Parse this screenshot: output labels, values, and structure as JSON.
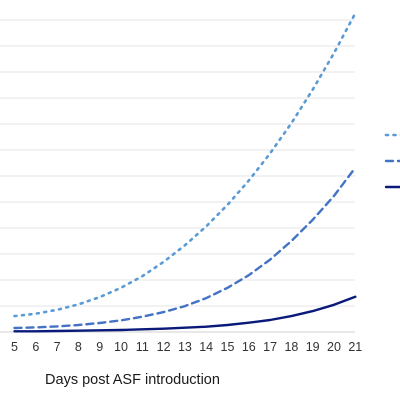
{
  "chart_data": {
    "type": "line",
    "xlabel": "Days post ASF introduction",
    "x": [
      5,
      6,
      7,
      8,
      9,
      10,
      11,
      12,
      13,
      14,
      15,
      16,
      17,
      18,
      19,
      20,
      21
    ],
    "x_tick_labels": [
      "5",
      "6",
      "7",
      "8",
      "9",
      "10",
      "11",
      "12",
      "13",
      "14",
      "15",
      "16",
      "17",
      "18",
      "19",
      "20",
      "21"
    ],
    "ylim": [
      0,
      100
    ],
    "grid": true,
    "series": [
      {
        "style": "dotted",
        "color": "#5b9bd5",
        "values": [
          4.8,
          5.5,
          6.7,
          8.3,
          10.5,
          13.3,
          16.8,
          21.1,
          26.1,
          31.8,
          38.3,
          45.6,
          53.8,
          62.9,
          73.0,
          84.0,
          96.0
        ]
      },
      {
        "style": "dashed",
        "color": "#4472c4",
        "values": [
          1.2,
          1.4,
          1.7,
          2.1,
          2.7,
          3.5,
          4.6,
          6.0,
          7.8,
          10.2,
          13.3,
          17.1,
          21.8,
          27.4,
          33.8,
          41.0,
          49.5
        ]
      },
      {
        "style": "solid",
        "color": "#0a1a7a",
        "values": [
          0.2,
          0.2,
          0.3,
          0.4,
          0.5,
          0.6,
          0.8,
          1.0,
          1.3,
          1.6,
          2.1,
          2.8,
          3.6,
          4.8,
          6.3,
          8.2,
          10.6
        ]
      }
    ],
    "legend_position": "right"
  }
}
